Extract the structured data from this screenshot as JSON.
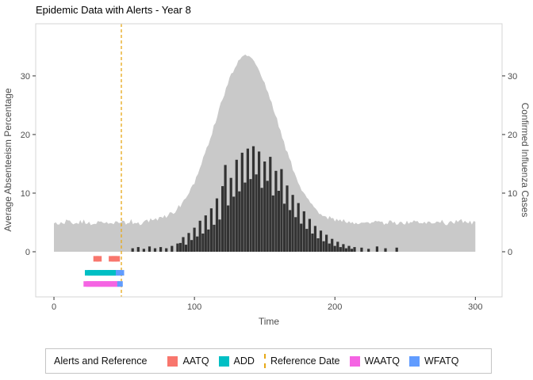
{
  "chart_data": {
    "type": "combo-area-bar",
    "title": "Epidemic Data with Alerts - Year 8",
    "xlabel": "Time",
    "ylabel_left": "Average Absenteeism Percentage",
    "ylabel_right": "Confirmed Influenza Cases",
    "x_ticks": [
      0,
      100,
      200,
      300
    ],
    "y_ticks_left": [
      0,
      10,
      20,
      30
    ],
    "y_ticks_right": [
      0,
      10,
      20,
      30
    ],
    "x_domain": [
      -13,
      319
    ],
    "y_domain": [
      -7.7,
      38.9
    ],
    "grid": false,
    "reference_date": {
      "label": "Reference Date",
      "x": 48,
      "color": "#E6A817",
      "style": "dashed"
    },
    "absenteeism": {
      "name": "Average Absenteeism Percentage",
      "type": "area",
      "color": "#C9C9C9",
      "points": [
        [
          0,
          5.1
        ],
        [
          5,
          4.7
        ],
        [
          10,
          5.3
        ],
        [
          15,
          4.9
        ],
        [
          20,
          5.2
        ],
        [
          25,
          4.8
        ],
        [
          30,
          5.0
        ],
        [
          35,
          5.3
        ],
        [
          40,
          4.7
        ],
        [
          45,
          5.1
        ],
        [
          50,
          4.9
        ],
        [
          55,
          5.2
        ],
        [
          60,
          4.8
        ],
        [
          65,
          5.2
        ],
        [
          70,
          5.4
        ],
        [
          75,
          5.6
        ],
        [
          80,
          6.0
        ],
        [
          85,
          6.7
        ],
        [
          90,
          7.9
        ],
        [
          95,
          9.6
        ],
        [
          100,
          11.9
        ],
        [
          105,
          14.9
        ],
        [
          110,
          18.4
        ],
        [
          115,
          22.3
        ],
        [
          120,
          26.1
        ],
        [
          125,
          29.6
        ],
        [
          130,
          32.1
        ],
        [
          135,
          33.4
        ],
        [
          140,
          33.2
        ],
        [
          145,
          31.7
        ],
        [
          150,
          28.9
        ],
        [
          155,
          25.4
        ],
        [
          160,
          21.5
        ],
        [
          165,
          17.7
        ],
        [
          170,
          14.3
        ],
        [
          175,
          11.4
        ],
        [
          180,
          9.2
        ],
        [
          185,
          7.6
        ],
        [
          190,
          6.6
        ],
        [
          195,
          5.9
        ],
        [
          200,
          5.5
        ],
        [
          205,
          5.3
        ],
        [
          210,
          5.1
        ],
        [
          215,
          5.0
        ],
        [
          220,
          5.2
        ],
        [
          225,
          4.8
        ],
        [
          230,
          5.1
        ],
        [
          235,
          4.9
        ],
        [
          240,
          5.2
        ],
        [
          245,
          4.8
        ],
        [
          250,
          5.0
        ],
        [
          255,
          5.2
        ],
        [
          260,
          4.8
        ],
        [
          265,
          5.1
        ],
        [
          270,
          4.9
        ],
        [
          275,
          5.2
        ],
        [
          280,
          4.8
        ],
        [
          285,
          5.0
        ],
        [
          290,
          5.2
        ],
        [
          295,
          4.9
        ],
        [
          300,
          5.0
        ]
      ]
    },
    "influenza": {
      "name": "Confirmed Influenza Cases",
      "type": "bar",
      "color": "#333333",
      "points": [
        [
          56,
          0.6
        ],
        [
          60,
          0.8
        ],
        [
          64,
          0.5
        ],
        [
          68,
          0.9
        ],
        [
          72,
          0.6
        ],
        [
          76,
          0.8
        ],
        [
          80,
          0.6
        ],
        [
          84,
          1.0
        ],
        [
          88,
          1.4
        ],
        [
          90,
          1.5
        ],
        [
          92,
          2.5
        ],
        [
          94,
          1.2
        ],
        [
          96,
          3.2
        ],
        [
          98,
          2.0
        ],
        [
          100,
          4.1
        ],
        [
          102,
          2.6
        ],
        [
          104,
          5.3
        ],
        [
          106,
          3.1
        ],
        [
          108,
          6.2
        ],
        [
          110,
          3.8
        ],
        [
          112,
          7.4
        ],
        [
          114,
          4.6
        ],
        [
          116,
          9.1
        ],
        [
          118,
          5.5
        ],
        [
          120,
          11.2
        ],
        [
          122,
          14.8
        ],
        [
          124,
          7.9
        ],
        [
          126,
          12.6
        ],
        [
          128,
          9.4
        ],
        [
          130,
          15.7
        ],
        [
          132,
          10.3
        ],
        [
          134,
          16.9
        ],
        [
          136,
          11.8
        ],
        [
          138,
          17.6
        ],
        [
          140,
          12.4
        ],
        [
          142,
          18.0
        ],
        [
          144,
          13.2
        ],
        [
          146,
          17.1
        ],
        [
          148,
          10.9
        ],
        [
          150,
          15.4
        ],
        [
          152,
          12.1
        ],
        [
          154,
          16.2
        ],
        [
          156,
          9.6
        ],
        [
          158,
          13.8
        ],
        [
          160,
          10.4
        ],
        [
          162,
          14.1
        ],
        [
          164,
          8.2
        ],
        [
          166,
          11.3
        ],
        [
          168,
          7.1
        ],
        [
          170,
          9.7
        ],
        [
          172,
          5.9
        ],
        [
          174,
          8.3
        ],
        [
          176,
          4.8
        ],
        [
          178,
          6.9
        ],
        [
          180,
          3.9
        ],
        [
          182,
          5.6
        ],
        [
          184,
          3.1
        ],
        [
          186,
          4.4
        ],
        [
          188,
          2.3
        ],
        [
          190,
          3.6
        ],
        [
          192,
          1.8
        ],
        [
          194,
          2.9
        ],
        [
          196,
          1.4
        ],
        [
          198,
          2.2
        ],
        [
          200,
          1.0
        ],
        [
          202,
          1.7
        ],
        [
          204,
          0.8
        ],
        [
          206,
          1.3
        ],
        [
          208,
          0.6
        ],
        [
          210,
          1.0
        ],
        [
          212,
          0.5
        ],
        [
          214,
          0.8
        ],
        [
          219,
          0.7
        ],
        [
          224,
          0.5
        ],
        [
          230,
          0.9
        ],
        [
          236,
          0.6
        ],
        [
          244,
          0.7
        ]
      ]
    },
    "alert_rows": [
      {
        "label": "AATQ",
        "color": "#F8766D",
        "y": -1.2,
        "times": [
          30,
          32,
          41,
          43,
          45
        ]
      },
      {
        "label": "ADD",
        "color": "#00BFC4",
        "y": -3.6,
        "times": [
          24,
          26,
          28,
          30,
          32,
          34,
          36,
          38,
          40,
          42,
          44
        ]
      },
      {
        "label": "WFATQ",
        "color": "#619CFF",
        "y": -3.6,
        "times": [
          46,
          48
        ]
      },
      {
        "label": "WAATQ",
        "color": "#F564E3",
        "y": -5.5,
        "times": [
          23,
          25,
          27,
          29,
          31,
          33,
          35,
          37,
          39,
          41,
          43,
          45
        ]
      },
      {
        "label": "WFATQ",
        "color": "#619CFF",
        "y": -5.5,
        "times": [
          47
        ]
      }
    ]
  },
  "legend": {
    "title": "Alerts and Reference",
    "items": [
      {
        "label": "AATQ",
        "key": "swatch",
        "color": "#F8766D"
      },
      {
        "label": "ADD",
        "key": "swatch",
        "color": "#00BFC4"
      },
      {
        "label": "Reference Date",
        "key": "dashed-line",
        "color": "#E6A817"
      },
      {
        "label": "WAATQ",
        "key": "swatch",
        "color": "#F564E3"
      },
      {
        "label": "WFATQ",
        "key": "swatch",
        "color": "#619CFF"
      }
    ]
  }
}
